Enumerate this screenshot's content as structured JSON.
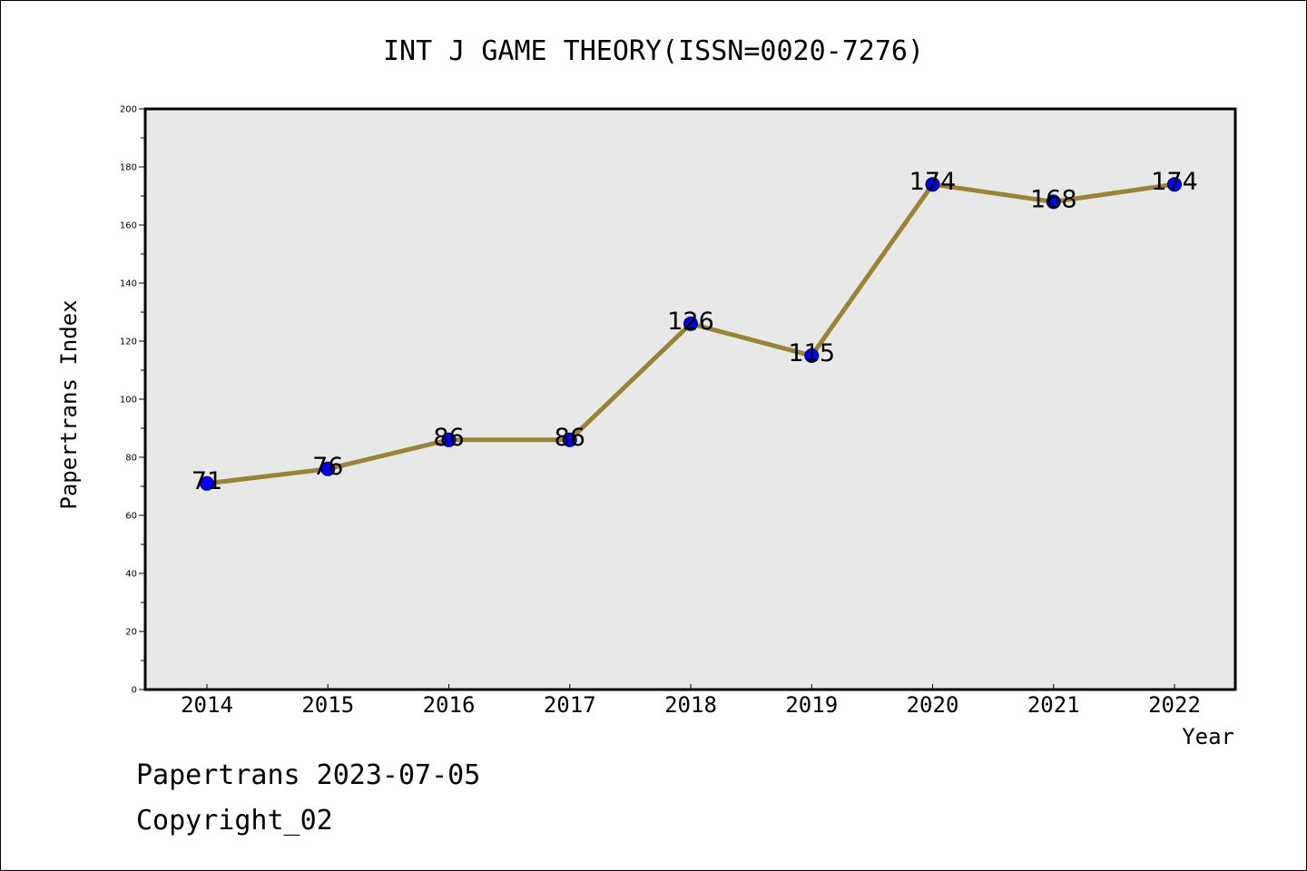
{
  "chart_data": {
    "type": "line",
    "title": "INT J GAME THEORY(ISSN=0020-7276)",
    "xlabel": "Year",
    "ylabel": "Papertrans Index",
    "categories": [
      "2014",
      "2015",
      "2016",
      "2017",
      "2018",
      "2019",
      "2020",
      "2021",
      "2022"
    ],
    "series": [
      {
        "values": [
          71,
          76,
          86,
          86,
          126,
          115,
          174,
          168,
          174
        ]
      }
    ],
    "data_labels": [
      "71",
      "76",
      "86",
      "86",
      "126",
      "115",
      "174",
      "168",
      "174"
    ],
    "ylim": [
      0,
      200
    ],
    "yticks": [
      "0",
      "20",
      "40",
      "60",
      "80",
      "100",
      "120",
      "140",
      "160",
      "180",
      "200"
    ],
    "grid": false,
    "legend": "none",
    "colors": {
      "line": "#9a8236",
      "marker": "#0000ff",
      "plot_background": "#e8e8e8",
      "frame": "#000000"
    }
  },
  "footer": {
    "source": "Papertrans 2023-07-05",
    "copyright": "Copyright_02"
  }
}
